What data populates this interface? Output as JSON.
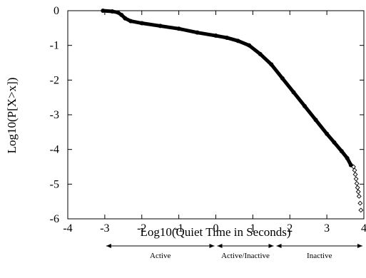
{
  "chart_data": {
    "type": "scatter",
    "title": "",
    "xlabel": "Log10(Quiet Time in Seconds)",
    "ylabel": "Log10(P[X>x])",
    "xlim": [
      -4,
      4
    ],
    "ylim": [
      -6,
      0
    ],
    "xticks": [
      "-4",
      "-3",
      "-2",
      "-1",
      "0",
      "1",
      "2",
      "3",
      "4"
    ],
    "yticks": [
      "0",
      "-1",
      "-2",
      "-3",
      "-4",
      "-5",
      "-6"
    ],
    "grid": false,
    "legend": "none",
    "marker": "diamond",
    "color": "#000000",
    "series": [
      {
        "x": [
          -3.05,
          -2.8,
          -2.65,
          -2.55,
          -2.45,
          -2.3,
          -2.0,
          -1.5,
          -1.0,
          -0.5,
          0.0,
          0.3,
          0.6,
          0.9,
          1.2,
          1.5,
          1.8,
          2.1,
          2.4,
          2.7,
          3.0,
          3.2,
          3.4,
          3.55,
          3.65
        ],
        "y": [
          0.0,
          -0.02,
          -0.05,
          -0.12,
          -0.22,
          -0.3,
          -0.36,
          -0.44,
          -0.52,
          -0.63,
          -0.72,
          -0.78,
          -0.87,
          -1.0,
          -1.25,
          -1.55,
          -1.95,
          -2.35,
          -2.75,
          -3.15,
          -3.55,
          -3.8,
          -4.05,
          -4.25,
          -4.45
        ],
        "sparse_x": [
          3.72,
          3.75,
          3.77,
          3.79,
          3.81,
          3.83,
          3.85,
          3.87,
          3.9,
          3.92
        ],
        "sparse_y": [
          -4.5,
          -4.6,
          -4.72,
          -4.85,
          -4.98,
          -5.1,
          -5.22,
          -5.35,
          -5.55,
          -5.75
        ]
      }
    ],
    "regions": [
      {
        "label": "Active",
        "from": -3,
        "to": 0
      },
      {
        "label": "Active/Inactive",
        "from": 0,
        "to": 1.6
      },
      {
        "label": "Inactive",
        "from": 1.6,
        "to": 4
      }
    ]
  }
}
